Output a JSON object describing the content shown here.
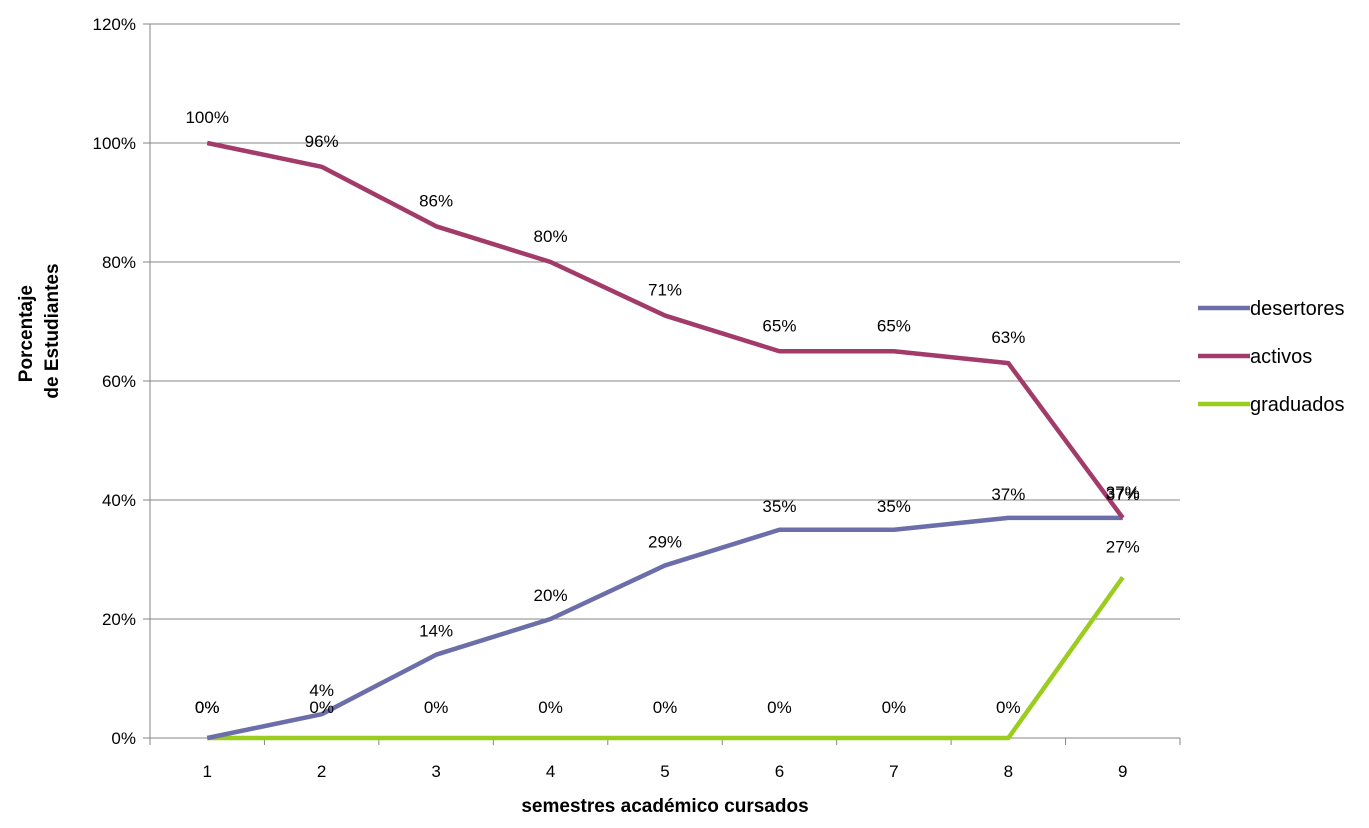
{
  "chart_data": {
    "type": "line",
    "x": [
      "1",
      "2",
      "3",
      "4",
      "5",
      "6",
      "7",
      "8",
      "9"
    ],
    "xlabel": "semestres  académico cursados",
    "ylabel_lines": [
      "Porcentaje",
      "de Estudiantes"
    ],
    "ylim": [
      0,
      120
    ],
    "yticks": [
      "0%",
      "20%",
      "40%",
      "60%",
      "80%",
      "100%",
      "120%"
    ],
    "grid": "horizontal",
    "legend_position": "right",
    "series": [
      {
        "name": "desertores",
        "color": "#6b6ea8",
        "values": [
          0,
          4,
          14,
          20,
          29,
          35,
          35,
          37,
          37
        ],
        "labels": [
          "0%",
          "4%",
          "14%",
          "20%",
          "29%",
          "35%",
          "35%",
          "37%",
          "37%"
        ]
      },
      {
        "name": "activos",
        "color": "#a23a6a",
        "values": [
          100,
          96,
          86,
          80,
          71,
          65,
          65,
          63,
          37
        ],
        "labels": [
          "100%",
          "96%",
          "86%",
          "80%",
          "71%",
          "65%",
          "65%",
          "63%",
          "37%"
        ]
      },
      {
        "name": "graduados",
        "color": "#9acd1e",
        "values": [
          0,
          0,
          0,
          0,
          0,
          0,
          0,
          0,
          27
        ],
        "labels": [
          "0%",
          "0%",
          "0%",
          "0%",
          "0%",
          "0%",
          "0%",
          "0%",
          "27%"
        ]
      }
    ]
  }
}
